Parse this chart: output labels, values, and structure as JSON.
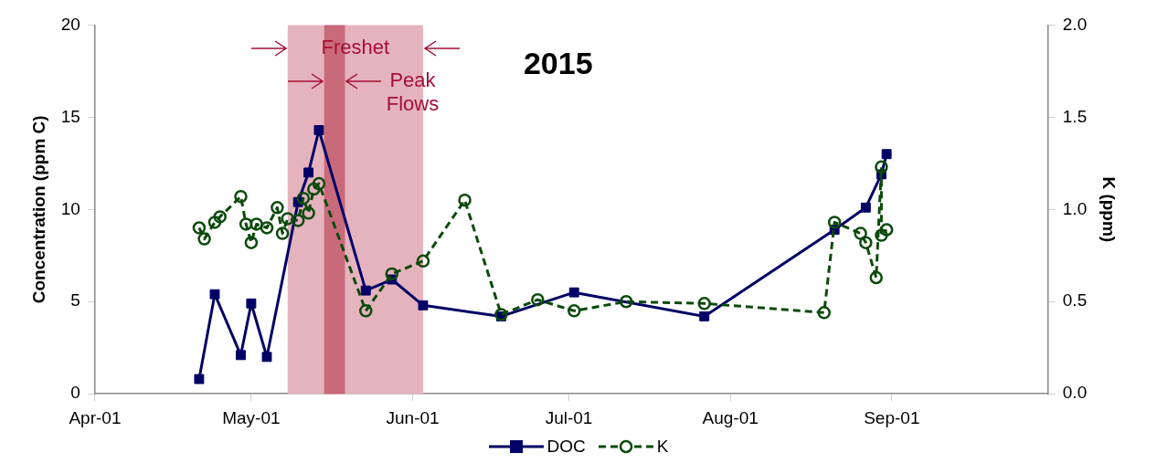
{
  "chart_data": {
    "type": "line",
    "title": "2015",
    "ylabel": "Concentration (ppm C)",
    "y2label": "K (ppm)",
    "xlim": [
      "2015-04-01",
      "2015-10-01"
    ],
    "xticks": [
      {
        "value": "2015-04-01",
        "label": "Apr-01"
      },
      {
        "value": "2015-05-01",
        "label": "May-01"
      },
      {
        "value": "2015-06-01",
        "label": "Jun-01"
      },
      {
        "value": "2015-07-01",
        "label": "Jul-01"
      },
      {
        "value": "2015-08-01",
        "label": "Aug-01"
      },
      {
        "value": "2015-09-01",
        "label": "Sep-01"
      }
    ],
    "ylim": [
      0,
      20
    ],
    "yticks": [
      0,
      5,
      10,
      15,
      20
    ],
    "y2lim": [
      0,
      2
    ],
    "y2ticks": [
      {
        "value": 0,
        "label": "0.0"
      },
      {
        "value": 0.5,
        "label": "0.5"
      },
      {
        "value": 1,
        "label": "1.0"
      },
      {
        "value": 1.5,
        "label": "1.5"
      },
      {
        "value": 2,
        "label": "2.0"
      }
    ],
    "grid": false,
    "legend": "bottom",
    "bands": [
      {
        "axis": "x",
        "from": "2015-05-08",
        "to": "2015-06-03",
        "label": "Freshet",
        "color": "#e4b3be"
      },
      {
        "axis": "x",
        "from": "2015-05-15",
        "to": "2015-05-19",
        "label": "Peak Flows",
        "color": "#c96a7a"
      }
    ],
    "series": [
      {
        "name": "DOC",
        "color": "#000066",
        "marker": "square",
        "line_style": "solid",
        "x": [
          "2015-04-21",
          "2015-04-24",
          "2015-04-29",
          "2015-05-01",
          "2015-05-04",
          "2015-05-10",
          "2015-05-12",
          "2015-05-14",
          "2015-05-23",
          "2015-05-28",
          "2015-06-03",
          "2015-06-18",
          "2015-07-02",
          "2015-07-27",
          "2015-08-21",
          "2015-08-27",
          "2015-08-30",
          "2015-08-31"
        ],
        "values": [
          0.8,
          5.4,
          2.1,
          4.9,
          2.0,
          10.4,
          12.0,
          14.3,
          5.6,
          6.2,
          4.8,
          4.2,
          5.5,
          4.2,
          8.9,
          10.1,
          11.9,
          13.0
        ]
      },
      {
        "name": "K",
        "color": "#0b4a0b",
        "marker": "circle",
        "line_style": "dashed",
        "axis": "y2",
        "x": [
          "2015-04-21",
          "2015-04-22",
          "2015-04-24",
          "2015-04-25",
          "2015-04-29",
          "2015-04-30",
          "2015-05-01",
          "2015-05-02",
          "2015-05-04",
          "2015-05-06",
          "2015-05-07",
          "2015-05-08",
          "2015-05-10",
          "2015-05-11",
          "2015-05-12",
          "2015-05-13",
          "2015-05-14",
          "2015-05-23",
          "2015-05-28",
          "2015-06-03",
          "2015-06-11",
          "2015-06-18",
          "2015-06-25",
          "2015-07-02",
          "2015-07-12",
          "2015-07-27",
          "2015-08-19",
          "2015-08-21",
          "2015-08-26",
          "2015-08-27",
          "2015-08-29",
          "2015-08-30",
          "2015-08-30",
          "2015-08-31"
        ],
        "values": [
          0.9,
          0.84,
          0.93,
          0.96,
          1.07,
          0.92,
          0.82,
          0.92,
          0.9,
          1.01,
          0.87,
          0.95,
          0.94,
          1.06,
          0.98,
          1.11,
          1.14,
          0.45,
          0.65,
          0.72,
          1.05,
          0.43,
          0.51,
          0.45,
          0.5,
          0.49,
          0.44,
          0.93,
          0.87,
          0.82,
          0.63,
          1.23,
          0.86,
          0.89
        ]
      }
    ]
  }
}
